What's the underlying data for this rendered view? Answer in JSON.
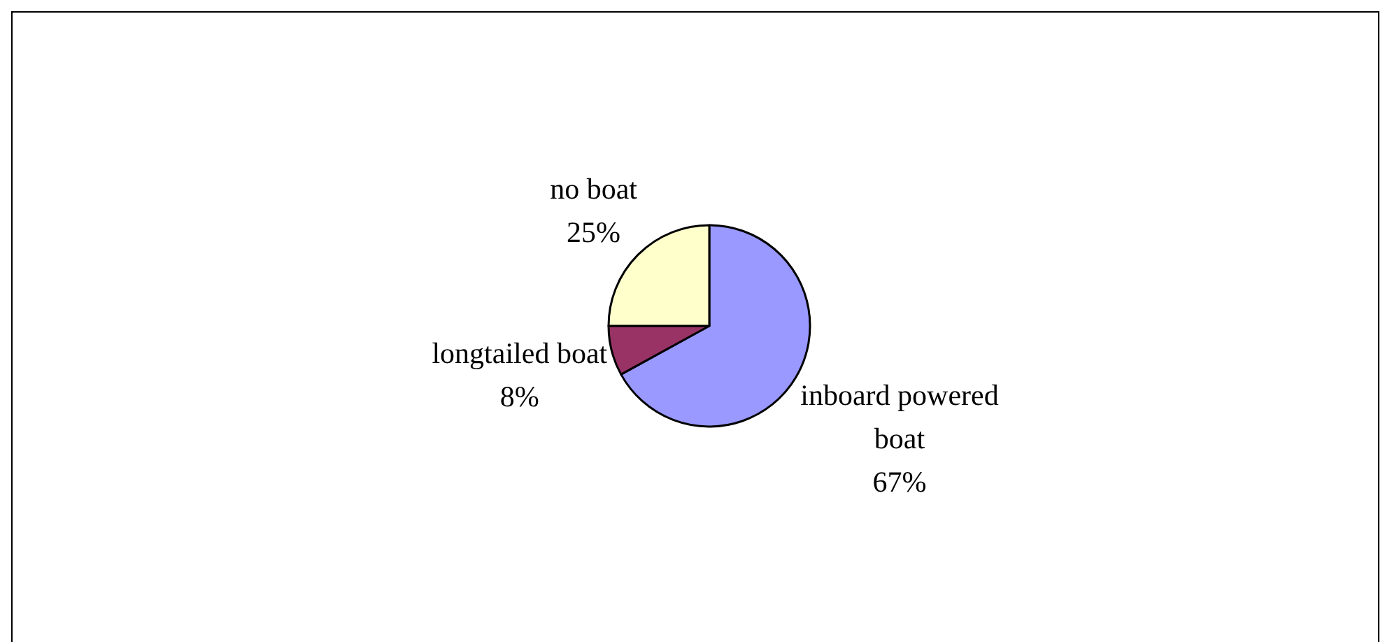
{
  "chart_data": {
    "type": "pie",
    "categories": [
      "inboard powered boat",
      "longtailed boat",
      "no boat"
    ],
    "values": [
      67,
      8,
      25
    ],
    "colors": [
      "#9999ff",
      "#993366",
      "#ffffcc"
    ],
    "value_labels": [
      "67%",
      "8%",
      "25%"
    ]
  }
}
